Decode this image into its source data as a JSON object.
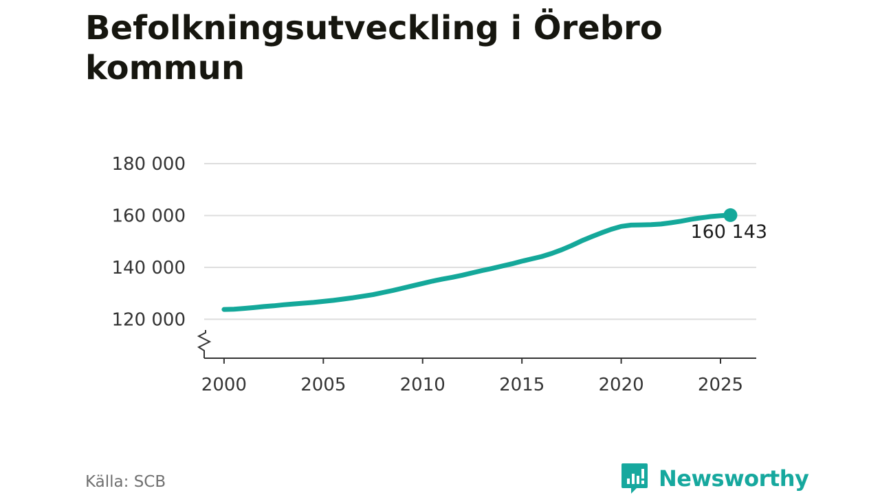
{
  "title": "Befolkningsutveckling i Örebro kommun",
  "source": "Källa: SCB",
  "brand": {
    "name": "Newsworthy",
    "icon": "newsworthy-logo-icon",
    "color": "#16a89e"
  },
  "chart_data": {
    "type": "line",
    "title": "Befolkningsutveckling i Örebro kommun",
    "xlabel": "",
    "ylabel": "",
    "xlim": [
      1999.0,
      2026.8
    ],
    "ylim": [
      105000,
      180000
    ],
    "y_axis_break": true,
    "x_ticks": [
      2000,
      2005,
      2010,
      2015,
      2020,
      2025
    ],
    "y_ticks": [
      {
        "value": 120000,
        "label": "120 000"
      },
      {
        "value": 140000,
        "label": "140 000"
      },
      {
        "value": 160000,
        "label": "160 000"
      },
      {
        "value": 180000,
        "label": "180 000"
      }
    ],
    "grid": true,
    "line_color": "#14a89a",
    "series": [
      {
        "x": [
          2000.0,
          2000.5,
          2001.0,
          2001.5,
          2002.0,
          2002.5,
          2003.0,
          2003.5,
          2004.0,
          2004.5,
          2005.0,
          2005.5,
          2006.0,
          2006.5,
          2007.0,
          2007.5,
          2008.0,
          2008.5,
          2009.0,
          2009.5,
          2010.0,
          2010.5,
          2011.0,
          2011.5,
          2012.0,
          2012.5,
          2013.0,
          2013.5,
          2014.0,
          2014.5,
          2015.0,
          2015.5,
          2016.0,
          2016.5,
          2017.0,
          2017.5,
          2018.0,
          2018.5,
          2019.0,
          2019.5,
          2020.0,
          2020.5,
          2021.0,
          2021.5,
          2022.0,
          2022.5,
          2023.0,
          2023.5,
          2024.0,
          2024.5,
          2025.0,
          2025.5
        ],
        "values": [
          123800,
          123900,
          124200,
          124500,
          124900,
          125200,
          125600,
          125900,
          126200,
          126500,
          126900,
          127300,
          127800,
          128300,
          128900,
          129500,
          130300,
          131100,
          132000,
          132900,
          133800,
          134700,
          135500,
          136200,
          137000,
          137900,
          138800,
          139600,
          140500,
          141400,
          142400,
          143300,
          144200,
          145400,
          146800,
          148400,
          150200,
          151800,
          153300,
          154700,
          155800,
          156300,
          156400,
          156500,
          156700,
          157200,
          157800,
          158500,
          159100,
          159600,
          159900,
          160143
        ]
      }
    ],
    "end_label": "160 143"
  }
}
